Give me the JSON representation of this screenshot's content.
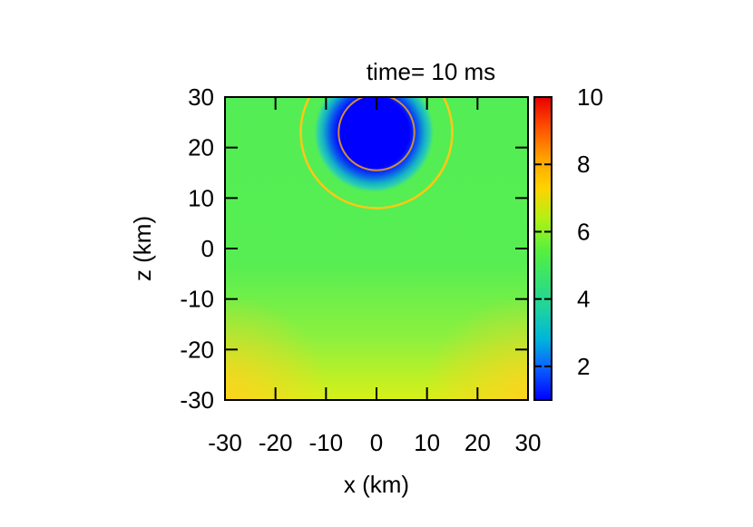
{
  "chart_data": {
    "type": "heatmap",
    "title": "time= 10 ms",
    "xlabel": "x (km)",
    "ylabel": "z (km)",
    "xlim": [
      -30,
      30
    ],
    "ylim": [
      -30,
      30
    ],
    "x_ticks": [
      "-30",
      "-20",
      "-10",
      "0",
      "10",
      "20",
      "30"
    ],
    "y_ticks": [
      "30",
      "20",
      "10",
      "0",
      "-10",
      "-20",
      "-30"
    ],
    "colorbar": {
      "range": [
        1,
        10
      ],
      "ticks": [
        "10",
        "8",
        "6",
        "4",
        "2"
      ],
      "colors": [
        "#0000ff",
        "#0096ff",
        "#00c8c8",
        "#32e696",
        "#50f050",
        "#96f03c",
        "#dcf014",
        "#ffc800",
        "#ff8200",
        "#ff3200",
        "#e60000"
      ]
    },
    "field": {
      "background_value": 4.6,
      "low_core": {
        "center_x": -0.5,
        "center_z": 23,
        "radius_km": 7.5,
        "value": 1.0
      },
      "halo": {
        "radius_km": 12,
        "value": 3.2
      },
      "wavefront_outer": {
        "center_x": 0,
        "center_z": 23,
        "radius_km": 15,
        "value": 7.2
      },
      "wavefront_inner": {
        "center_x": 0,
        "center_z": 23,
        "radius_km": 7.5,
        "value": 8.4
      },
      "bottom_value": 7.0
    },
    "grid": false,
    "legend": "colorbar-right"
  }
}
